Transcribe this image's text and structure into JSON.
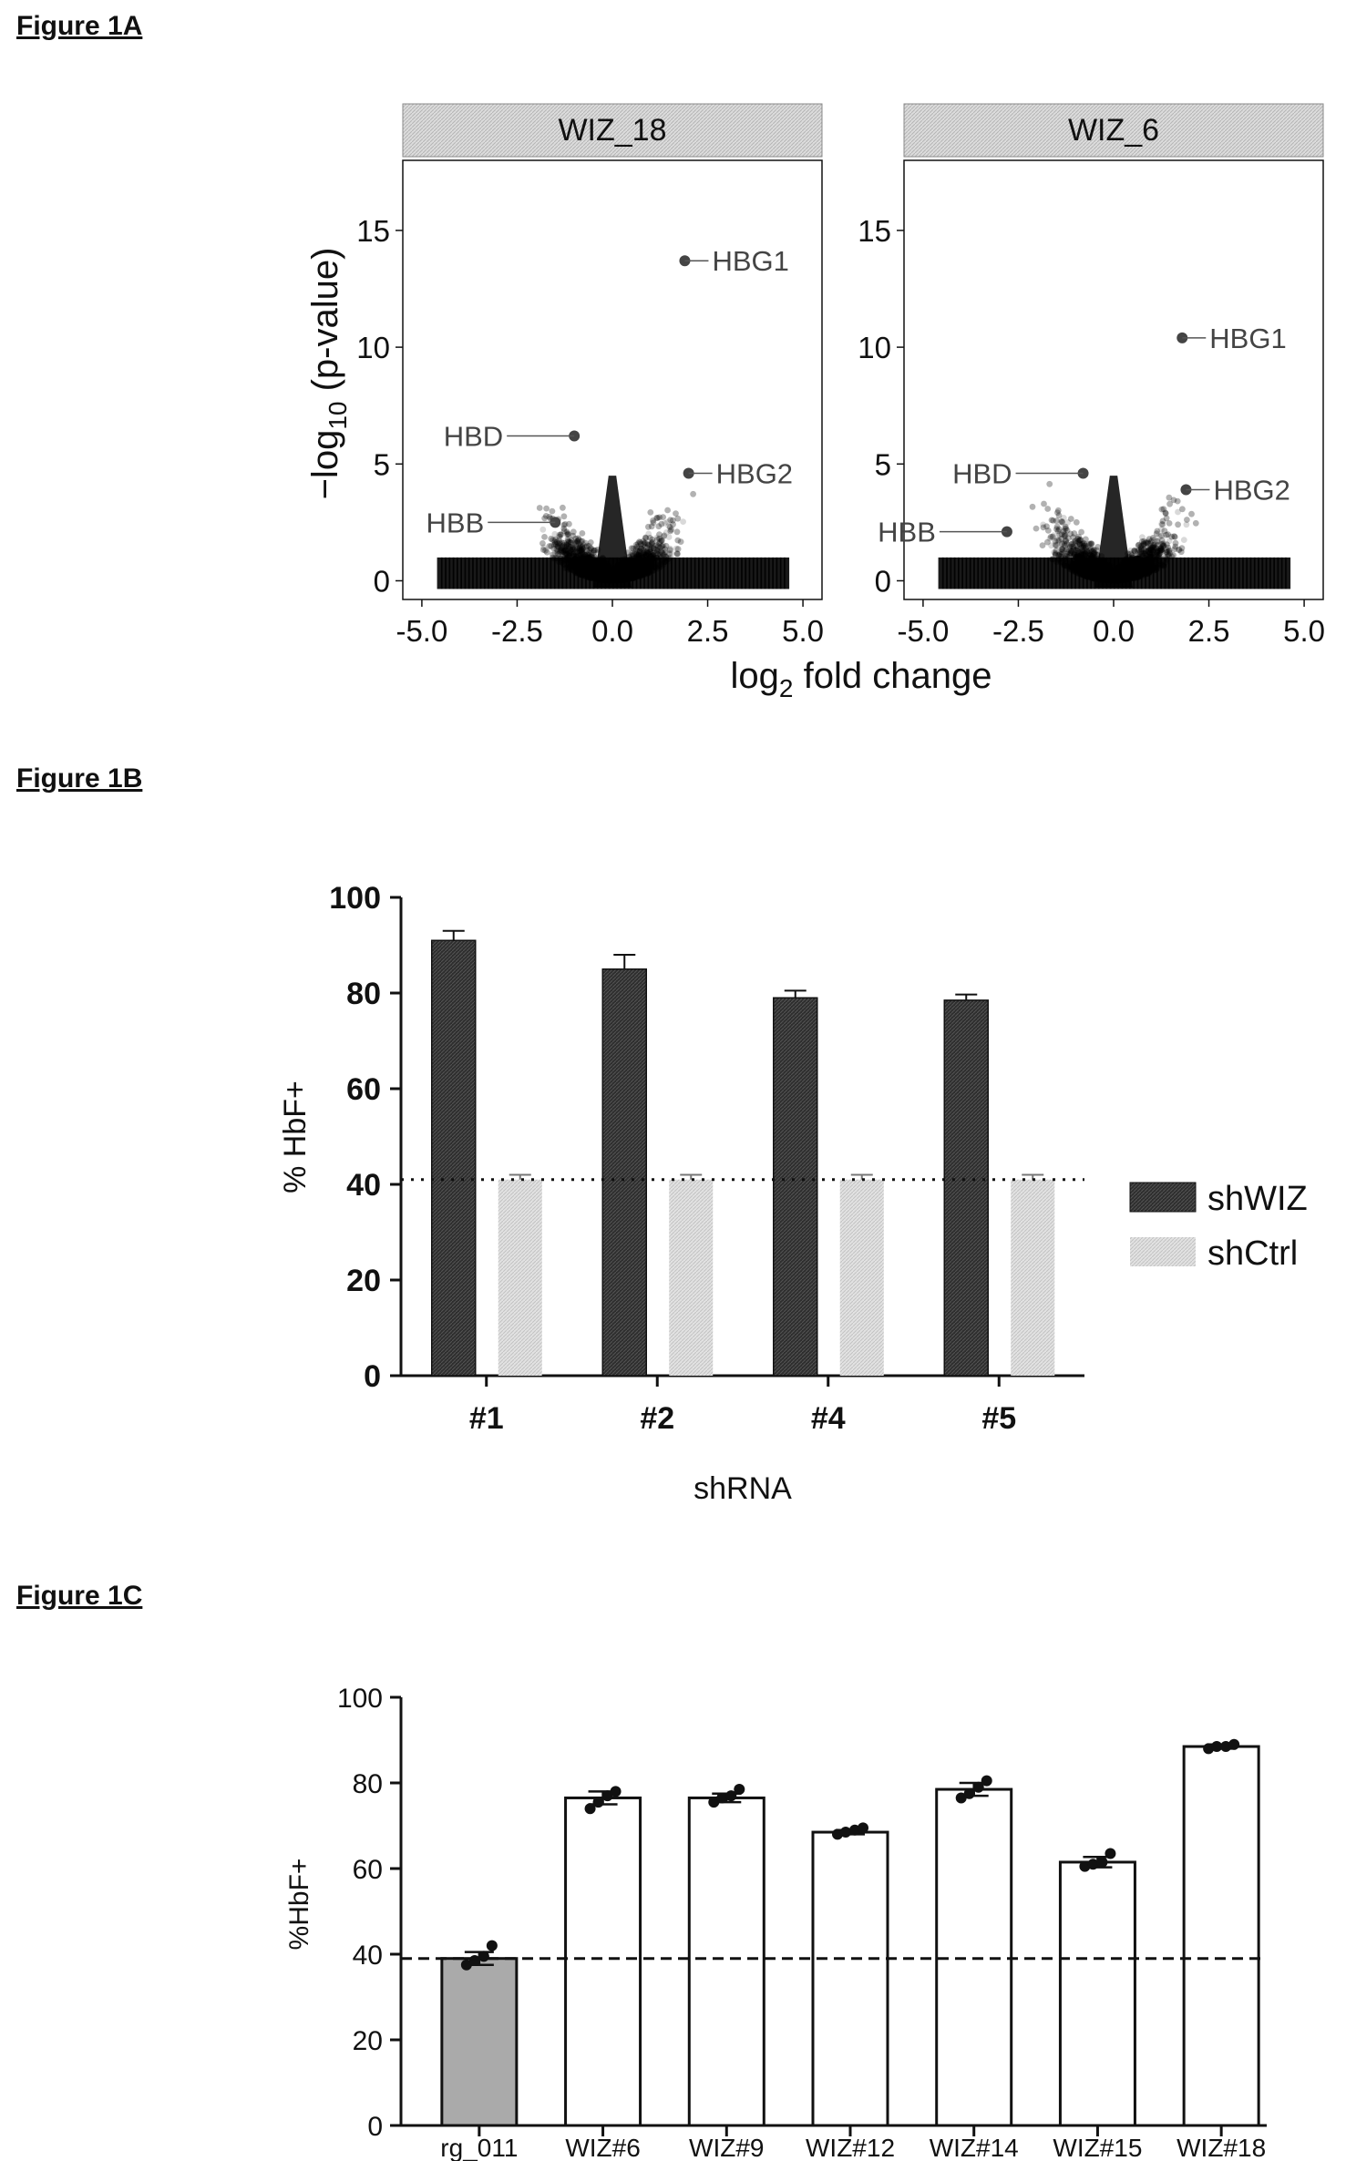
{
  "figure_labels": {
    "a": "Figure 1A",
    "b": "Figure 1B",
    "c": "Figure 1C"
  },
  "chart_data": [
    {
      "type": "scatter",
      "panels": [
        {
          "name": "WIZ_18",
          "highlights": [
            {
              "label": "HBG1",
              "x": 1.9,
              "y": 13.7
            },
            {
              "label": "HBD",
              "x": -1.0,
              "y": 6.2
            },
            {
              "label": "HBG2",
              "x": 2.0,
              "y": 4.6
            },
            {
              "label": "HBB",
              "x": -1.5,
              "y": 2.5
            }
          ]
        },
        {
          "name": "WIZ_6",
          "highlights": [
            {
              "label": "HBG1",
              "x": 1.8,
              "y": 10.4
            },
            {
              "label": "HBD",
              "x": -0.8,
              "y": 4.6
            },
            {
              "label": "HBG2",
              "x": 1.9,
              "y": 3.9
            },
            {
              "label": "HBB",
              "x": -2.8,
              "y": 2.1
            }
          ]
        }
      ],
      "xlabel_base": "log",
      "xlabel_sub": "2",
      "xlabel_rest": " fold change",
      "ylabel_pre": "−log",
      "ylabel_sub": "10",
      "ylabel_rest": " (p-value)",
      "xlim": [
        -5.5,
        5.5
      ],
      "ylim": [
        -0.8,
        18
      ],
      "xticks": [
        "-5.0",
        "-2.5",
        "0.0",
        "2.5",
        "5.0"
      ],
      "yticks": [
        "0",
        "5",
        "10",
        "15"
      ]
    },
    {
      "type": "bar",
      "categories": [
        "#1",
        "#2",
        "#4",
        "#5"
      ],
      "series": [
        {
          "name": "shWIZ",
          "values": [
            91,
            85,
            79,
            78.5
          ],
          "errors": [
            2,
            3,
            1.5,
            1.2
          ],
          "color": "#333333"
        },
        {
          "name": "shCtrl",
          "values": [
            41,
            41,
            41,
            41
          ],
          "errors": [
            1,
            1,
            1,
            1
          ],
          "color": "#d4d4d4"
        }
      ],
      "reference_line": 41,
      "xlabel": "shRNA",
      "ylabel": "% HbF+",
      "ylim": [
        0,
        100
      ],
      "yticks": [
        "0",
        "20",
        "40",
        "60",
        "80",
        "100"
      ],
      "legend": "right"
    },
    {
      "type": "bar",
      "categories": [
        "rg_011",
        "WIZ#6",
        "WIZ#9",
        "WIZ#12",
        "WIZ#14",
        "WIZ#15",
        "WIZ#18"
      ],
      "values": [
        39,
        76.5,
        76.5,
        68.5,
        78.5,
        61.5,
        88.5
      ],
      "errors": [
        1.5,
        1.5,
        1,
        0.5,
        1.5,
        1.2,
        0.5
      ],
      "points": [
        [
          37.5,
          38.5,
          39.5,
          42
        ],
        [
          74,
          75.5,
          77,
          78
        ],
        [
          75.5,
          76.5,
          77,
          78.5
        ],
        [
          68,
          68.5,
          69,
          69.5
        ],
        [
          76.5,
          77.5,
          79,
          80.5
        ],
        [
          60.5,
          61,
          61.5,
          63.5
        ],
        [
          88,
          88.5,
          88.5,
          89
        ]
      ],
      "bar_colors": [
        "#aaaaaa",
        "#ffffff",
        "#ffffff",
        "#ffffff",
        "#ffffff",
        "#ffffff",
        "#ffffff"
      ],
      "reference_line": 39,
      "ylabel": "%HbF+",
      "ylim": [
        0,
        100
      ],
      "yticks": [
        "0",
        "20",
        "40",
        "60",
        "80",
        "100"
      ]
    }
  ]
}
